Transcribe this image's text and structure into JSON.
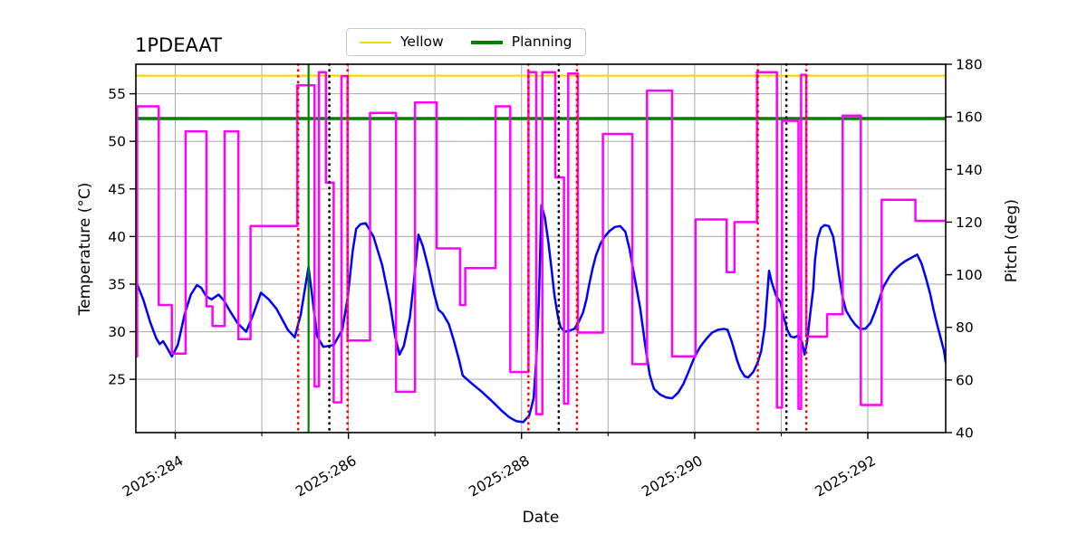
{
  "chart_data": {
    "type": "line",
    "title": "1PDEAAT",
    "xlabel": "Date",
    "ylabel_left": "Temperature (°C)",
    "ylabel_right": "Pitch (deg)",
    "xlim": [
      283.545,
      292.9
    ],
    "ylim_left": [
      19.4,
      58.1
    ],
    "ylim_right": [
      40,
      180
    ],
    "grid": true,
    "x_major_ticks": [
      {
        "day": 284,
        "label": "2025:284"
      },
      {
        "day": 286,
        "label": "2025:286"
      },
      {
        "day": 288,
        "label": "2025:288"
      },
      {
        "day": 290,
        "label": "2025:290"
      },
      {
        "day": 292,
        "label": "2025:292"
      }
    ],
    "x_minor_ticks": [
      285,
      287,
      289,
      291
    ],
    "y_left_ticks": [
      25,
      30,
      35,
      40,
      45,
      50,
      55
    ],
    "y_right_ticks": [
      40,
      60,
      80,
      100,
      120,
      140,
      160,
      180
    ],
    "legend": {
      "position": "top-center",
      "items": [
        {
          "label": "Yellow",
          "color": "#ffd700",
          "lw": 2.5
        },
        {
          "label": "Planning",
          "color": "#008000",
          "lw": 4
        }
      ]
    },
    "hlines": [
      {
        "name": "Yellow",
        "axis": "left",
        "value": 56.9,
        "color": "#ffd700",
        "width": 2.2
      },
      {
        "name": "Planning",
        "axis": "left",
        "value": 52.4,
        "color": "#008000",
        "width": 3.5
      }
    ],
    "vlines": [
      {
        "day": 285.42,
        "color": "#ff0000",
        "style": "dotted"
      },
      {
        "day": 285.54,
        "color": "#008000",
        "style": "solid"
      },
      {
        "day": 285.78,
        "color": "#000000",
        "style": "dotted"
      },
      {
        "day": 285.99,
        "color": "#ff0000",
        "style": "dotted"
      },
      {
        "day": 288.08,
        "color": "#ff0000",
        "style": "dotted"
      },
      {
        "day": 288.43,
        "color": "#000000",
        "style": "dotted"
      },
      {
        "day": 288.64,
        "color": "#ff0000",
        "style": "dotted"
      },
      {
        "day": 290.73,
        "color": "#ff0000",
        "style": "dotted"
      },
      {
        "day": 291.06,
        "color": "#000000",
        "style": "dotted"
      },
      {
        "day": 291.29,
        "color": "#ff0000",
        "style": "dotted"
      }
    ],
    "series": [
      {
        "name": "Temperature",
        "axis": "left",
        "color": "#0000ff",
        "style": "line",
        "points": [
          [
            283.55,
            35.2
          ],
          [
            283.63,
            33.4
          ],
          [
            283.71,
            31.0
          ],
          [
            283.78,
            29.3
          ],
          [
            283.82,
            28.7
          ],
          [
            283.86,
            29.0
          ],
          [
            283.9,
            28.4
          ],
          [
            283.96,
            27.4
          ],
          [
            284.03,
            28.6
          ],
          [
            284.11,
            31.9
          ],
          [
            284.18,
            33.9
          ],
          [
            284.25,
            34.9
          ],
          [
            284.3,
            34.6
          ],
          [
            284.36,
            33.7
          ],
          [
            284.42,
            33.4
          ],
          [
            284.5,
            33.9
          ],
          [
            284.56,
            33.3
          ],
          [
            284.63,
            32.2
          ],
          [
            284.72,
            30.9
          ],
          [
            284.82,
            30.0
          ],
          [
            284.9,
            31.8
          ],
          [
            284.99,
            34.1
          ],
          [
            285.08,
            33.4
          ],
          [
            285.17,
            32.4
          ],
          [
            285.3,
            30.2
          ],
          [
            285.38,
            29.4
          ],
          [
            285.45,
            31.8
          ],
          [
            285.54,
            36.8
          ],
          [
            285.64,
            29.5
          ],
          [
            285.71,
            28.4
          ],
          [
            285.77,
            28.5
          ],
          [
            285.83,
            28.6
          ],
          [
            285.93,
            30.2
          ],
          [
            285.99,
            33.5
          ],
          [
            286.05,
            38.5
          ],
          [
            286.09,
            40.8
          ],
          [
            286.14,
            41.3
          ],
          [
            286.2,
            41.4
          ],
          [
            286.29,
            40.0
          ],
          [
            286.39,
            37.0
          ],
          [
            286.48,
            33.0
          ],
          [
            286.54,
            29.5
          ],
          [
            286.59,
            27.6
          ],
          [
            286.64,
            28.5
          ],
          [
            286.71,
            31.5
          ],
          [
            286.76,
            35.5
          ],
          [
            286.81,
            40.2
          ],
          [
            286.86,
            39.0
          ],
          [
            286.93,
            36.5
          ],
          [
            286.99,
            34.0
          ],
          [
            287.04,
            32.3
          ],
          [
            287.09,
            31.9
          ],
          [
            287.16,
            30.8
          ],
          [
            287.22,
            29.0
          ],
          [
            287.28,
            27.0
          ],
          [
            287.32,
            25.4
          ],
          [
            287.42,
            24.6
          ],
          [
            287.54,
            23.7
          ],
          [
            287.66,
            22.7
          ],
          [
            287.77,
            21.7
          ],
          [
            287.86,
            21.0
          ],
          [
            287.94,
            20.6
          ],
          [
            288.02,
            20.5
          ],
          [
            288.09,
            21.2
          ],
          [
            288.14,
            23.0
          ],
          [
            288.17,
            27.0
          ],
          [
            288.2,
            33.0
          ],
          [
            288.23,
            43.3
          ],
          [
            288.27,
            42.0
          ],
          [
            288.31,
            39.4
          ],
          [
            288.35,
            36.3
          ],
          [
            288.38,
            33.8
          ],
          [
            288.42,
            31.6
          ],
          [
            288.45,
            30.5
          ],
          [
            288.5,
            30.0
          ],
          [
            288.55,
            30.1
          ],
          [
            288.61,
            30.3
          ],
          [
            288.66,
            31.0
          ],
          [
            288.71,
            32.0
          ],
          [
            288.75,
            33.4
          ],
          [
            288.78,
            34.9
          ],
          [
            288.82,
            36.6
          ],
          [
            288.86,
            38.0
          ],
          [
            288.91,
            39.2
          ],
          [
            288.96,
            40.0
          ],
          [
            289.02,
            40.6
          ],
          [
            289.08,
            41.0
          ],
          [
            289.14,
            41.1
          ],
          [
            289.2,
            40.5
          ],
          [
            289.25,
            38.6
          ],
          [
            289.3,
            36.0
          ],
          [
            289.37,
            32.5
          ],
          [
            289.43,
            28.5
          ],
          [
            289.48,
            25.5
          ],
          [
            289.53,
            24.0
          ],
          [
            289.6,
            23.4
          ],
          [
            289.67,
            23.1
          ],
          [
            289.74,
            23.0
          ],
          [
            289.81,
            23.6
          ],
          [
            289.87,
            24.5
          ],
          [
            289.93,
            25.8
          ],
          [
            290.0,
            27.4
          ],
          [
            290.07,
            28.5
          ],
          [
            290.14,
            29.3
          ],
          [
            290.2,
            29.9
          ],
          [
            290.27,
            30.2
          ],
          [
            290.34,
            30.3
          ],
          [
            290.38,
            30.2
          ],
          [
            290.43,
            28.9
          ],
          [
            290.49,
            27.0
          ],
          [
            290.53,
            26.0
          ],
          [
            290.58,
            25.3
          ],
          [
            290.62,
            25.2
          ],
          [
            290.68,
            25.8
          ],
          [
            290.73,
            26.8
          ],
          [
            290.77,
            28.0
          ],
          [
            290.81,
            30.5
          ],
          [
            290.84,
            34.0
          ],
          [
            290.86,
            36.4
          ],
          [
            290.89,
            35.2
          ],
          [
            290.94,
            33.8
          ],
          [
            290.99,
            33.1
          ],
          [
            291.03,
            31.5
          ],
          [
            291.07,
            30.2
          ],
          [
            291.11,
            29.5
          ],
          [
            291.15,
            29.4
          ],
          [
            291.2,
            29.6
          ],
          [
            291.24,
            28.9
          ],
          [
            291.27,
            27.6
          ],
          [
            291.3,
            29.0
          ],
          [
            291.33,
            31.5
          ],
          [
            291.37,
            34.5
          ],
          [
            291.39,
            37.5
          ],
          [
            291.42,
            39.8
          ],
          [
            291.46,
            40.9
          ],
          [
            291.5,
            41.2
          ],
          [
            291.55,
            41.1
          ],
          [
            291.6,
            40.0
          ],
          [
            291.63,
            38.3
          ],
          [
            291.67,
            35.8
          ],
          [
            291.71,
            33.6
          ],
          [
            291.75,
            32.2
          ],
          [
            291.81,
            31.3
          ],
          [
            291.86,
            30.7
          ],
          [
            291.91,
            30.3
          ],
          [
            291.97,
            30.3
          ],
          [
            292.03,
            30.9
          ],
          [
            292.08,
            32.0
          ],
          [
            292.13,
            33.3
          ],
          [
            292.18,
            34.7
          ],
          [
            292.25,
            35.8
          ],
          [
            292.31,
            36.5
          ],
          [
            292.37,
            37.0
          ],
          [
            292.43,
            37.4
          ],
          [
            292.51,
            37.8
          ],
          [
            292.57,
            38.1
          ],
          [
            292.62,
            37.2
          ],
          [
            292.67,
            35.7
          ],
          [
            292.72,
            34.0
          ],
          [
            292.76,
            32.3
          ],
          [
            292.8,
            30.8
          ],
          [
            292.84,
            29.4
          ],
          [
            292.88,
            28.0
          ],
          [
            292.9,
            26.8
          ]
        ]
      },
      {
        "name": "Pitch",
        "axis": "right",
        "color": "#ff00ff",
        "style": "step",
        "segments": [
          [
            283.545,
            283.56,
            69
          ],
          [
            283.56,
            283.81,
            164
          ],
          [
            283.81,
            283.96,
            88.5
          ],
          [
            283.96,
            284.12,
            70
          ],
          [
            284.12,
            284.36,
            154.5
          ],
          [
            284.36,
            284.43,
            88
          ],
          [
            284.43,
            284.57,
            80.5
          ],
          [
            284.57,
            284.73,
            154.5
          ],
          [
            284.73,
            284.87,
            75.5
          ],
          [
            284.87,
            285.41,
            118.5
          ],
          [
            285.41,
            285.61,
            172
          ],
          [
            285.61,
            285.66,
            57.5
          ],
          [
            285.66,
            285.74,
            177
          ],
          [
            285.74,
            285.83,
            135
          ],
          [
            285.83,
            285.92,
            51.5
          ],
          [
            285.92,
            285.99,
            175.5
          ],
          [
            285.99,
            286.25,
            75
          ],
          [
            286.25,
            286.55,
            161.5
          ],
          [
            286.55,
            286.77,
            55.5
          ],
          [
            286.77,
            287.02,
            165.5
          ],
          [
            287.02,
            287.29,
            110
          ],
          [
            287.29,
            287.35,
            88.5
          ],
          [
            287.35,
            287.7,
            102.5
          ],
          [
            287.7,
            287.87,
            164
          ],
          [
            287.87,
            288.08,
            63
          ],
          [
            288.08,
            288.17,
            177
          ],
          [
            288.17,
            288.24,
            47
          ],
          [
            288.24,
            288.39,
            177
          ],
          [
            288.39,
            288.49,
            137
          ],
          [
            288.49,
            288.54,
            51
          ],
          [
            288.54,
            288.65,
            176.5
          ],
          [
            288.65,
            288.94,
            78
          ],
          [
            288.94,
            289.28,
            153.5
          ],
          [
            289.28,
            289.45,
            66
          ],
          [
            289.45,
            289.74,
            170
          ],
          [
            289.74,
            290.01,
            69
          ],
          [
            290.01,
            290.37,
            121
          ],
          [
            290.37,
            290.46,
            101
          ],
          [
            290.46,
            290.72,
            120
          ],
          [
            290.72,
            290.95,
            177
          ],
          [
            290.95,
            291.01,
            49.5
          ],
          [
            291.01,
            291.2,
            158.5
          ],
          [
            291.2,
            291.23,
            49
          ],
          [
            291.23,
            291.29,
            176
          ],
          [
            291.29,
            291.53,
            76.5
          ],
          [
            291.53,
            291.71,
            85
          ],
          [
            291.71,
            291.92,
            160.5
          ],
          [
            291.92,
            292.16,
            50.5
          ],
          [
            292.16,
            292.55,
            128.5
          ],
          [
            292.55,
            292.9,
            120.5
          ]
        ]
      }
    ],
    "colors": {
      "grid": "#b0b0b0",
      "spine": "#000000",
      "tick_label_left": "#000000",
      "tick_label_bottom": "#000000",
      "tick_label_right": "#ff00ff",
      "axis_label_right": "#ff00ff"
    }
  }
}
